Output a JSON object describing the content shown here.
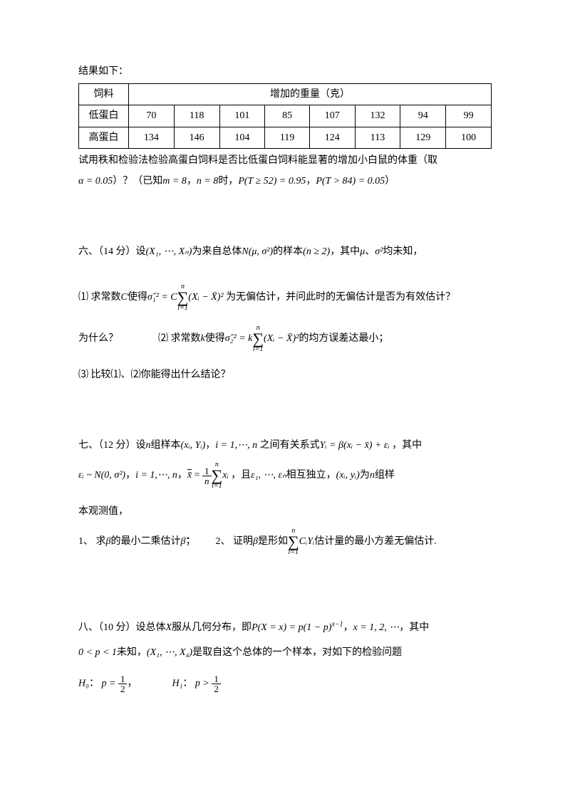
{
  "intro": "结果如下：",
  "table": {
    "header": {
      "feed": "饲料",
      "weight": "增加的重量（克）"
    },
    "rows": [
      {
        "label": "低蛋白",
        "cells": [
          "70",
          "118",
          "101",
          "85",
          "107",
          "132",
          "94",
          "99"
        ]
      },
      {
        "label": "高蛋白",
        "cells": [
          "134",
          "146",
          "104",
          "119",
          "124",
          "113",
          "129",
          "100"
        ]
      }
    ]
  },
  "p5a": "试用秩和检验法检验高蛋白饲料是否比低蛋白饲料能显著的增加小白鼠的体重（取",
  "p5b_pre": "）？（已知",
  "p5b_m": "m = 8",
  "p5b_sep": "，",
  "p5b_n": "n = 8",
  "p5b_when": "时，",
  "p5b_p1": "P(T ≥ 52) = 0.95",
  "p5b_p2": "P(T > 84) = 0.05",
  "p5b_end": "）",
  "alpha": "α = 0.05",
  "q6": {
    "head_pre": "六、（14 分）设",
    "sample": "(X₁, ⋯, Xₙ)",
    "head_mid": "为来自总体",
    "dist": "N(μ, σ²)",
    "head_post": "的样本",
    "cond": "(n ≥ 2)",
    "tail": "，其中",
    "mu": "μ",
    "sep": "、",
    "sig": "σ²",
    "unknown": "均未知，",
    "s1a": "⑴ 求常数",
    "s1c": "C",
    "s1b": "使得",
    "s1eq_lhs": "σ̂₁² = C",
    "s1eq_body": "(Xᵢ − X̄)²",
    "s1c2": " 为无偏估计，并问此时的无偏估计是否为有效估计？",
    "s2a": "为什么？",
    "s2b": "⑵ 求常数",
    "s2k": "k",
    "s2c": "使得",
    "s2eq_lhs": "σ̂₂² = k",
    "s2d": "的均方误差达最小；",
    "s3": "⑶ 比较⑴、⑵你能得出什么结论？",
    "sum_top": "n",
    "sum_bot": "i=1"
  },
  "q7": {
    "head_pre": "七、（12 分）设",
    "n": "n",
    "head_a": "组样本",
    "pair": "(xᵢ, Yᵢ)",
    "idx": "i = 1,⋯, n",
    "between": " 之间有关系式",
    "rel": "Yᵢ = β(xᵢ − x̄) + εᵢ",
    "tail": " ，其中",
    "eps": "εᵢ ~ N(0, σ²)",
    "idx2": "i = 1,⋯, n",
    "xbar_def_pre": "，",
    "xbar": "x̄",
    "eq": " = ",
    "frac_num": "1",
    "frac_den": "n",
    "sum_top": "n",
    "sum_bot": "i=1",
    "xi": "xᵢ",
    "indep": " ，且",
    "eps_list": "ε₁, ⋯, εₙ",
    "indep2": "相互独立，",
    "pair2": "(xᵢ, yᵢ)",
    "obs": "为",
    "obs2": "组样",
    "obs3": "本观测值，",
    "s1": "1、 求",
    "beta": "β",
    "s1b": "的最小二乘估计",
    "bhat": "β̂",
    "semi": "；",
    "s2": "2、 证明",
    "s2b": "是形如",
    "ciyi": "CᵢYᵢ",
    "s2c": "估计量的最小方差无偏估计."
  },
  "q8": {
    "head_pre": "八、（10 分）设总体",
    "X": "X",
    "head_a": "服从几何分布，即",
    "pmf": "P(X = x) = p(1 − p)",
    "exp": "x−1",
    "xs": "x = 1, 2, ⋯",
    "tail": "，其中",
    "range": "0 < p < 1",
    "unknown": "未知，",
    "sample": "(X₁, ⋯, X₄)",
    "smp_txt": "是取自这个总体的一个样本，对如下的检验问题",
    "h0_lbl": "H₀",
    "h0_body": "p = ",
    "h1_lbl": "H₁",
    "h1_body": "p > ",
    "half_num": "1",
    "half_den": "2",
    "colon": "：",
    "comma": "，"
  }
}
